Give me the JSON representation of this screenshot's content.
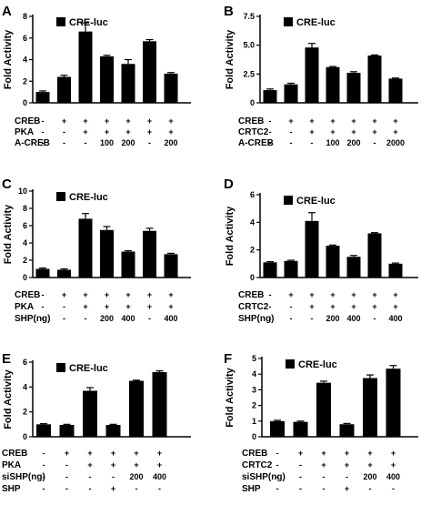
{
  "chart_data": [
    {
      "panel": "A",
      "type": "bar",
      "legend": "CRE-luc",
      "ylabel": "Fold  Activity",
      "ylim": [
        0,
        8
      ],
      "yticks": [
        0,
        2,
        4,
        6,
        8
      ],
      "values": [
        1.0,
        2.4,
        6.6,
        4.3,
        3.6,
        5.7,
        2.7
      ],
      "errors": [
        0.1,
        0.15,
        0.8,
        0.1,
        0.4,
        0.15,
        0.1
      ],
      "rows": [
        {
          "label": "CREB",
          "cells": [
            "-",
            "+",
            "+",
            "+",
            "+",
            "+",
            "+"
          ]
        },
        {
          "label": "PKA",
          "cells": [
            "-",
            "-",
            "+",
            "+",
            "+",
            "+",
            "+"
          ]
        },
        {
          "label": "A-CREB",
          "cells": [
            "-",
            "-",
            "-",
            "100",
            "200",
            "-",
            "200"
          ]
        }
      ]
    },
    {
      "panel": "B",
      "type": "bar",
      "legend": "CRE-luc",
      "ylabel": "Fold  Activity",
      "ylim": [
        0,
        7.5
      ],
      "yticks": [
        0,
        2.5,
        5.0,
        7.5
      ],
      "ytick_labels": [
        "0",
        "2.5",
        "5.0",
        "7.5"
      ],
      "values": [
        1.1,
        1.6,
        4.8,
        3.1,
        2.6,
        4.1,
        2.1
      ],
      "errors": [
        0.1,
        0.1,
        0.35,
        0.05,
        0.1,
        0.05,
        0.05
      ],
      "rows": [
        {
          "label": "CREB",
          "cells": [
            "-",
            "+",
            "+",
            "+",
            "+",
            "+",
            "+"
          ]
        },
        {
          "label": "CRTC2",
          "cells": [
            "-",
            "-",
            "+",
            "+",
            "+",
            "+",
            "+"
          ]
        },
        {
          "label": "A-CREB",
          "cells": [
            "-",
            "-",
            "-",
            "100",
            "200",
            "-",
            "2000"
          ]
        }
      ]
    },
    {
      "panel": "C",
      "type": "bar",
      "legend": "CRE-luc",
      "ylabel": "Fold  Activity",
      "ylim": [
        0,
        10
      ],
      "yticks": [
        0,
        2,
        4,
        6,
        8,
        10
      ],
      "values": [
        1.0,
        0.9,
        6.8,
        5.5,
        3.0,
        5.4,
        2.7
      ],
      "errors": [
        0.1,
        0.1,
        0.6,
        0.4,
        0.1,
        0.3,
        0.1
      ],
      "rows": [
        {
          "label": "CREB",
          "cells": [
            "-",
            "+",
            "+",
            "+",
            "+",
            "+",
            "+"
          ]
        },
        {
          "label": "PKA",
          "cells": [
            "-",
            "-",
            "+",
            "+",
            "+",
            "+",
            "+"
          ]
        },
        {
          "label": "SHP(ng)",
          "cells": [
            "-",
            "-",
            "-",
            "200",
            "400",
            "-",
            "400"
          ]
        }
      ]
    },
    {
      "panel": "D",
      "type": "bar",
      "legend": "CRE-luc",
      "ylabel": "Fold  Activity",
      "ylim": [
        0,
        6
      ],
      "yticks": [
        0,
        2,
        4,
        6
      ],
      "values": [
        1.1,
        1.2,
        4.1,
        2.3,
        1.5,
        3.2,
        1.0
      ],
      "errors": [
        0.05,
        0.05,
        0.6,
        0.05,
        0.1,
        0.05,
        0.05
      ],
      "rows": [
        {
          "label": "CREB",
          "cells": [
            "-",
            "+",
            "+",
            "+",
            "+",
            "+",
            "+"
          ]
        },
        {
          "label": "CRTC2",
          "cells": [
            "-",
            "-",
            "+",
            "+",
            "+",
            "+",
            "+"
          ]
        },
        {
          "label": "SHP(ng)",
          "cells": [
            "-",
            "-",
            "-",
            "200",
            "400",
            "-",
            "400"
          ]
        }
      ]
    },
    {
      "panel": "E",
      "type": "bar",
      "legend": "CRE-luc",
      "ylabel": "Fold  Activity",
      "ylim": [
        0,
        6
      ],
      "yticks": [
        0,
        2,
        4,
        6
      ],
      "values": [
        1.0,
        0.95,
        3.7,
        0.95,
        4.5,
        5.2
      ],
      "errors": [
        0.05,
        0.05,
        0.25,
        0.05,
        0.05,
        0.1
      ],
      "rows": [
        {
          "label": "CREB",
          "cells": [
            "-",
            "+",
            "+",
            "+",
            "+",
            "+"
          ]
        },
        {
          "label": "PKA",
          "cells": [
            "-",
            "-",
            "+",
            "+",
            "+",
            "+"
          ]
        },
        {
          "label": "siSHP(ng)",
          "cells": [
            "-",
            "-",
            "-",
            "-",
            "200",
            "400"
          ]
        },
        {
          "label": "SHP",
          "cells": [
            "-",
            "-",
            "-",
            "+",
            "-",
            "-"
          ]
        }
      ]
    },
    {
      "panel": "F",
      "type": "bar",
      "legend": "CRE-luc",
      "ylabel": "Fold  Activity",
      "ylim": [
        0,
        5
      ],
      "yticks": [
        0,
        1,
        2,
        3,
        4,
        5
      ],
      "values": [
        1.0,
        0.95,
        3.45,
        0.8,
        3.75,
        4.35
      ],
      "errors": [
        0.05,
        0.05,
        0.1,
        0.05,
        0.2,
        0.2
      ],
      "rows": [
        {
          "label": "CREB",
          "cells": [
            "-",
            "+",
            "+",
            "+",
            "+",
            "+"
          ]
        },
        {
          "label": "CRTC2",
          "cells": [
            "-",
            "-",
            "+",
            "+",
            "+",
            "+"
          ]
        },
        {
          "label": "siSHP(ng)",
          "cells": [
            "-",
            "-",
            "-",
            "-",
            "200",
            "400"
          ]
        },
        {
          "label": "SHP",
          "cells": [
            "-",
            "-",
            "-",
            "+",
            "-",
            "-"
          ]
        }
      ]
    }
  ]
}
